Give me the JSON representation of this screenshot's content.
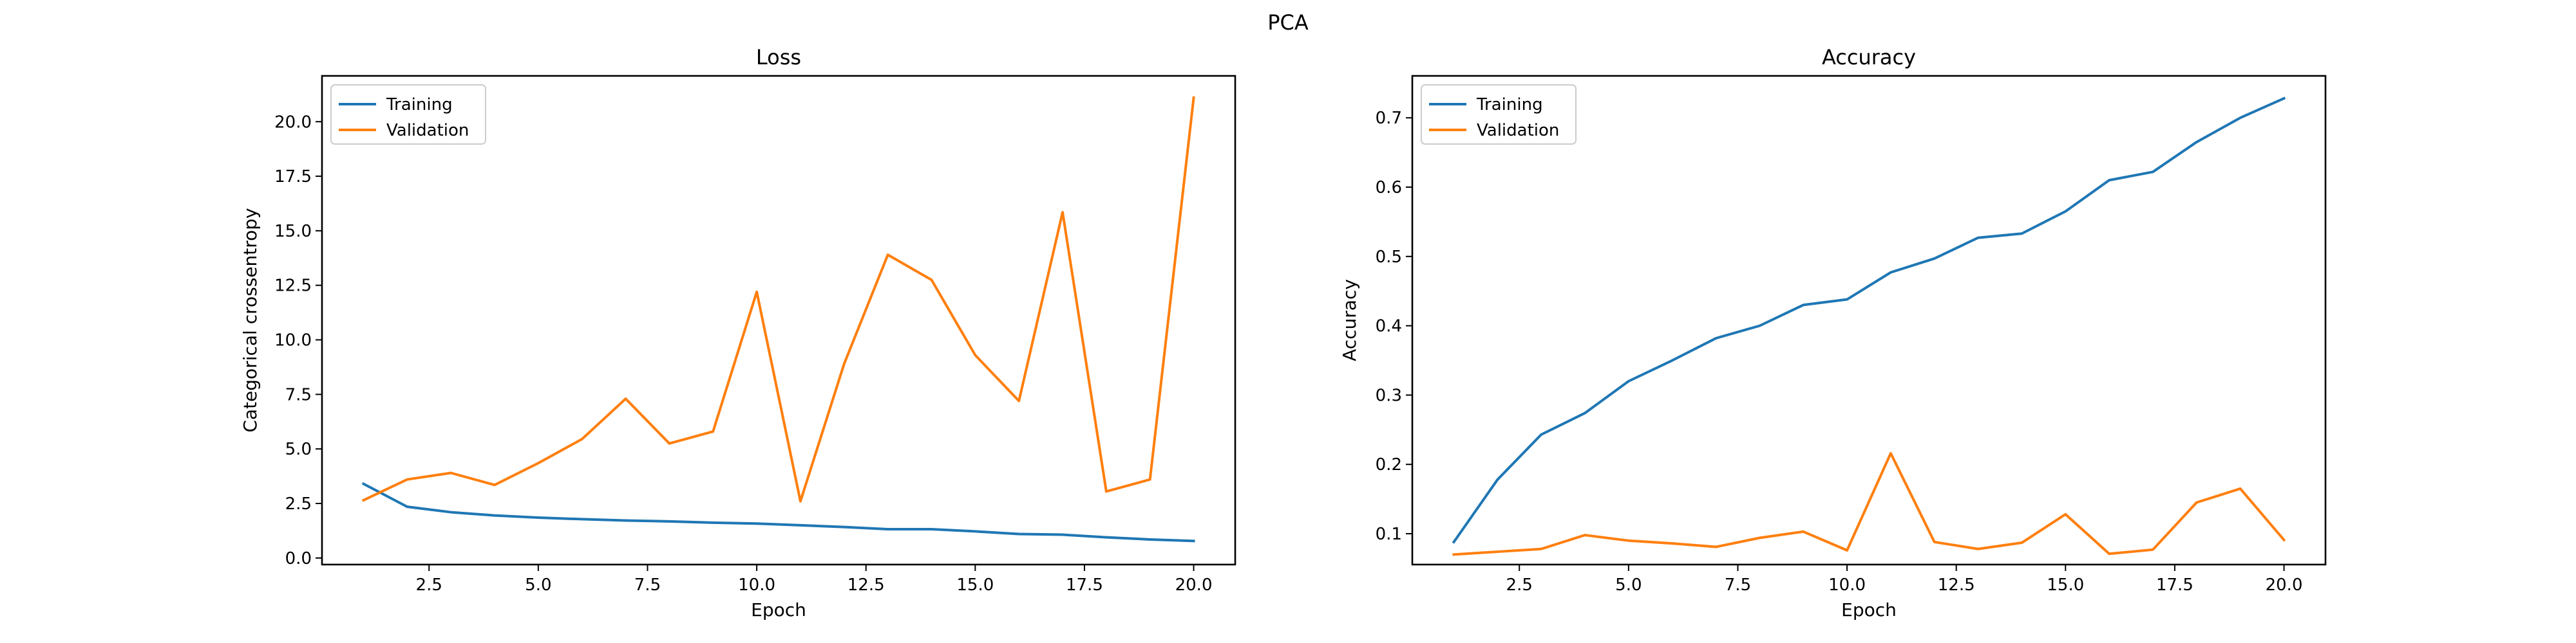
{
  "figure": {
    "suptitle": "PCA"
  },
  "chart_data": [
    {
      "type": "line",
      "title": "Loss",
      "xlabel": "Epoch",
      "ylabel": "Categorical crossentropy",
      "xlim": [
        0.05,
        20.95
      ],
      "ylim": [
        -0.3,
        22.1
      ],
      "xticks": [
        2.5,
        5.0,
        7.5,
        10.0,
        12.5,
        15.0,
        17.5,
        20.0
      ],
      "xtick_labels": [
        "2.5",
        "5.0",
        "7.5",
        "10.0",
        "12.5",
        "15.0",
        "17.5",
        "20.0"
      ],
      "yticks": [
        0.0,
        2.5,
        5.0,
        7.5,
        10.0,
        12.5,
        15.0,
        17.5,
        20.0
      ],
      "ytick_labels": [
        "0.0",
        "2.5",
        "5.0",
        "7.5",
        "10.0",
        "12.5",
        "15.0",
        "17.5",
        "20.0"
      ],
      "grid": false,
      "legend_position": "top-left",
      "x": [
        1,
        2,
        3,
        4,
        5,
        6,
        7,
        8,
        9,
        10,
        11,
        12,
        13,
        14,
        15,
        16,
        17,
        18,
        19,
        20
      ],
      "series": [
        {
          "name": "Training",
          "color": "#1f77b4",
          "values": [
            3.4,
            2.35,
            2.1,
            1.95,
            1.85,
            1.78,
            1.72,
            1.68,
            1.62,
            1.58,
            1.5,
            1.42,
            1.32,
            1.32,
            1.22,
            1.1,
            1.07,
            0.95,
            0.85,
            0.78
          ]
        },
        {
          "name": "Validation",
          "color": "#ff7f0e",
          "values": [
            2.65,
            3.6,
            3.9,
            3.35,
            4.35,
            5.45,
            7.3,
            5.25,
            5.8,
            12.2,
            2.6,
            8.9,
            13.9,
            12.75,
            9.3,
            7.2,
            15.85,
            3.05,
            3.6,
            21.1
          ]
        }
      ]
    },
    {
      "type": "line",
      "title": "Accuracy",
      "xlabel": "Epoch",
      "ylabel": "Accuracy",
      "xlim": [
        0.05,
        20.95
      ],
      "ylim": [
        0.0555,
        0.7605
      ],
      "xticks": [
        2.5,
        5.0,
        7.5,
        10.0,
        12.5,
        15.0,
        17.5,
        20.0
      ],
      "xtick_labels": [
        "2.5",
        "5.0",
        "7.5",
        "10.0",
        "12.5",
        "15.0",
        "17.5",
        "20.0"
      ],
      "yticks": [
        0.1,
        0.2,
        0.3,
        0.4,
        0.5,
        0.6,
        0.7
      ],
      "ytick_labels": [
        "0.1",
        "0.2",
        "0.3",
        "0.4",
        "0.5",
        "0.6",
        "0.7"
      ],
      "grid": false,
      "legend_position": "top-left",
      "x": [
        1,
        2,
        3,
        4,
        5,
        6,
        7,
        8,
        9,
        10,
        11,
        12,
        13,
        14,
        15,
        16,
        17,
        18,
        19,
        20
      ],
      "series": [
        {
          "name": "Training",
          "color": "#1f77b4",
          "values": [
            0.088,
            0.178,
            0.243,
            0.274,
            0.32,
            0.35,
            0.382,
            0.4,
            0.43,
            0.438,
            0.477,
            0.497,
            0.527,
            0.533,
            0.565,
            0.61,
            0.622,
            0.665,
            0.7,
            0.728
          ]
        },
        {
          "name": "Validation",
          "color": "#ff7f0e",
          "values": [
            0.07,
            0.074,
            0.078,
            0.098,
            0.09,
            0.086,
            0.081,
            0.094,
            0.103,
            0.076,
            0.216,
            0.088,
            0.078,
            0.087,
            0.128,
            0.071,
            0.077,
            0.145,
            0.165,
            0.091
          ]
        }
      ]
    }
  ]
}
